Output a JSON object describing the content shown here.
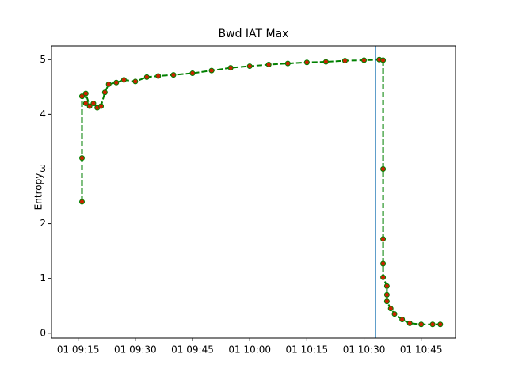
{
  "chart_data": {
    "type": "line",
    "title": "Bwd IAT Max",
    "ylabel": "Entropy",
    "x": [
      "01 09:16",
      "01 09:16",
      "01 09:16",
      "01 09:17",
      "01 09:17",
      "01 09:18",
      "01 09:19",
      "01 09:20",
      "01 09:21",
      "01 09:22",
      "01 09:23",
      "01 09:25",
      "01 09:27",
      "01 09:30",
      "01 09:33",
      "01 09:36",
      "01 09:40",
      "01 09:45",
      "01 09:50",
      "01 09:55",
      "01 10:00",
      "01 10:05",
      "01 10:10",
      "01 10:15",
      "01 10:20",
      "01 10:25",
      "01 10:30",
      "01 10:34",
      "01 10:35",
      "01 10:35",
      "01 10:35",
      "01 10:35",
      "01 10:35",
      "01 10:36",
      "01 10:36",
      "01 10:36",
      "01 10:37",
      "01 10:38",
      "01 10:40",
      "01 10:42",
      "01 10:45",
      "01 10:48",
      "01 10:50"
    ],
    "series": [
      {
        "color": "#008000",
        "marker_color": "#cc2200",
        "values": [
          2.4,
          3.2,
          4.33,
          4.2,
          4.38,
          4.15,
          4.2,
          4.12,
          4.15,
          4.4,
          4.55,
          4.58,
          4.63,
          4.6,
          4.68,
          4.7,
          4.72,
          4.75,
          4.8,
          4.85,
          4.88,
          4.91,
          4.93,
          4.95,
          4.96,
          4.98,
          4.99,
          5.0,
          4.99,
          3.0,
          1.72,
          1.27,
          1.02,
          0.86,
          0.7,
          0.58,
          0.45,
          0.35,
          0.25,
          0.18,
          0.16,
          0.16,
          0.16
        ]
      }
    ],
    "xlim": [
      "01 09:08",
      "01 10:54"
    ],
    "xticks": [
      "01 09:15",
      "01 09:30",
      "01 09:45",
      "01 10:00",
      "01 10:15",
      "01 10:30",
      "01 10:45"
    ],
    "ylim": [
      -0.09,
      5.25
    ],
    "yticks": [
      0,
      1,
      2,
      3,
      4,
      5
    ],
    "vline": {
      "x": "01 10:33",
      "color": "#1f77b4"
    }
  }
}
